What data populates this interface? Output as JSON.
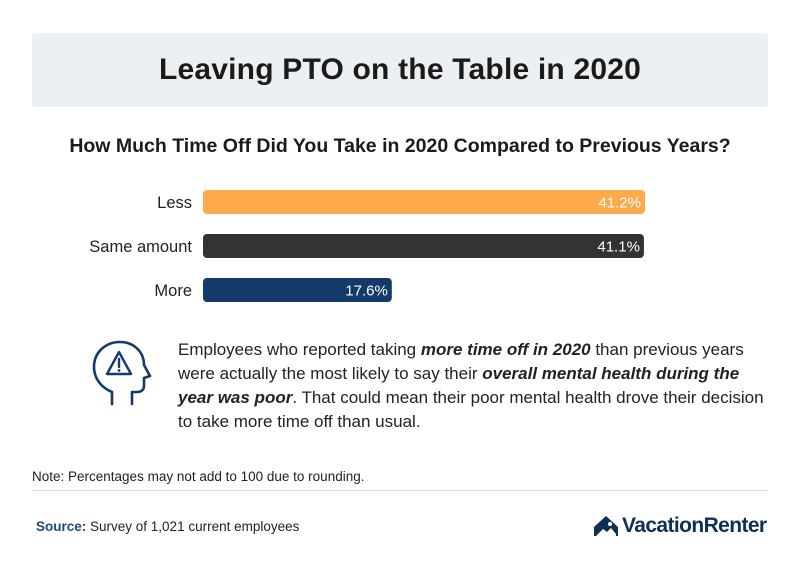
{
  "header": {
    "title": "Leaving PTO on the Table in 2020"
  },
  "chart_data": {
    "type": "bar",
    "orientation": "horizontal",
    "title": "How Much Time Off Did You Take in 2020 Compared to Previous Years?",
    "categories": [
      "Less",
      "Same amount",
      "More"
    ],
    "values": [
      41.2,
      41.1,
      17.6
    ],
    "value_labels": [
      "41.2%",
      "41.1%",
      "17.6%"
    ],
    "colors": [
      "#fcaa4b",
      "#333333",
      "#14396b"
    ],
    "xlim": [
      0,
      41.2
    ],
    "grid": false,
    "legend": "none"
  },
  "callout": {
    "icon": "head-warning-icon",
    "icon_color": "#14396b",
    "segments": [
      {
        "text": "Employees who reported taking ",
        "bold": false
      },
      {
        "text": "more time off in 2020",
        "bold": true
      },
      {
        "text": " than previous years were actually the most likely to say their ",
        "bold": false
      },
      {
        "text": "overall mental health during the year was poor",
        "bold": true
      },
      {
        "text": ". That could mean their poor mental health drove their decision to take more time off than usual.",
        "bold": false
      }
    ]
  },
  "footer": {
    "note": "Note: Percentages may not add to 100 due to rounding.",
    "source_label": "Source:",
    "source_text": " Survey of 1,021 current employees",
    "logo_text": "VacationRenter",
    "logo_icon": "house-logo-icon"
  }
}
